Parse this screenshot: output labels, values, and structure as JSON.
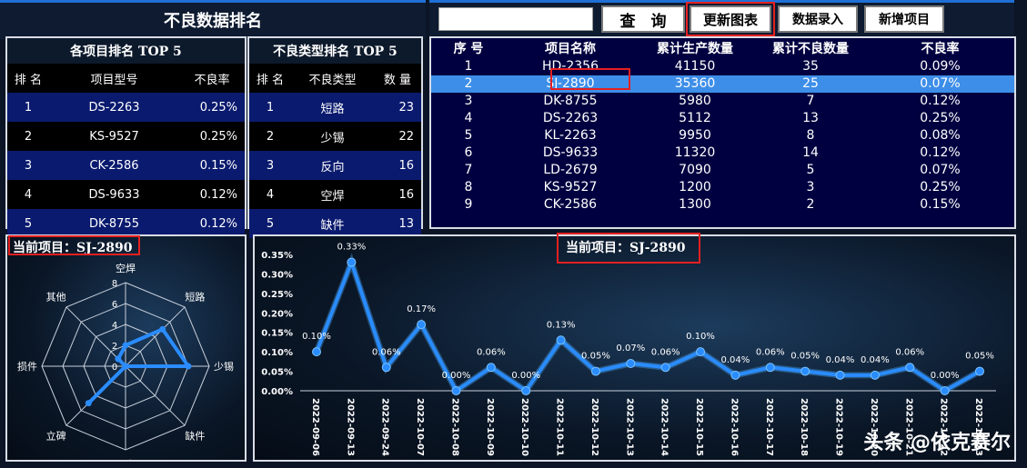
{
  "title": "不良数据排名",
  "toolbar": {
    "search_value": "",
    "query_label": "查　询",
    "refresh_label": "更新图表",
    "entry_label": "数据录入",
    "add_label": "新增项目"
  },
  "top5_projects": {
    "title": "各项目排名 TOP 5",
    "headers": [
      "排 名",
      "项目型号",
      "不良率"
    ],
    "rows": [
      [
        "1",
        "DS-2263",
        "0.25%"
      ],
      [
        "2",
        "KS-9527",
        "0.25%"
      ],
      [
        "3",
        "CK-2586",
        "0.15%"
      ],
      [
        "4",
        "DS-9633",
        "0.12%"
      ],
      [
        "5",
        "DK-8755",
        "0.12%"
      ]
    ]
  },
  "top5_types": {
    "title": "不良类型排名 TOP 5",
    "headers": [
      "排 名",
      "不良类型",
      "数 量"
    ],
    "rows": [
      [
        "1",
        "短路",
        "23"
      ],
      [
        "2",
        "少锡",
        "22"
      ],
      [
        "3",
        "反向",
        "16"
      ],
      [
        "4",
        "空焊",
        "16"
      ],
      [
        "5",
        "缺件",
        "13"
      ]
    ]
  },
  "project_list": {
    "headers": [
      "序 号",
      "项目名称",
      "累计生产数量",
      "累计不良数量",
      "不良率"
    ],
    "selected_index": 1,
    "rows": [
      [
        "1",
        "HD-2356",
        "41150",
        "35",
        "0.09%"
      ],
      [
        "2",
        "SJ-2890",
        "35360",
        "25",
        "0.07%"
      ],
      [
        "3",
        "DK-8755",
        "5980",
        "7",
        "0.12%"
      ],
      [
        "4",
        "DS-2263",
        "5112",
        "13",
        "0.25%"
      ],
      [
        "5",
        "KL-2263",
        "9950",
        "8",
        "0.08%"
      ],
      [
        "6",
        "DS-9633",
        "11320",
        "14",
        "0.12%"
      ],
      [
        "7",
        "LD-2679",
        "7090",
        "5",
        "0.07%"
      ],
      [
        "8",
        "KS-9527",
        "1200",
        "3",
        "0.25%"
      ],
      [
        "9",
        "CK-2586",
        "1300",
        "2",
        "0.15%"
      ]
    ]
  },
  "current_project_label": "当前项目：SJ-2890",
  "radar": {
    "type": "radar",
    "axes": [
      "空焊",
      "短路",
      "少锡",
      "缺件",
      "反向",
      "立碑",
      "损件",
      "其他"
    ],
    "values": [
      2,
      5,
      6,
      0,
      0,
      5,
      0,
      1
    ],
    "ticks": [
      "0",
      "2",
      "4",
      "6",
      "8"
    ],
    "max": 8
  },
  "chart_data": {
    "type": "line",
    "title": "当前项目：SJ-2890",
    "x": [
      "2022-09-06",
      "2022-09-13",
      "2022-09-24",
      "2022-10-07",
      "2022-10-08",
      "2022-10-09",
      "2022-10-10",
      "2022-10-11",
      "2022-10-12",
      "2022-10-13",
      "2022-10-14",
      "2022-10-15",
      "2022-10-16",
      "2022-10-17",
      "2022-10-18",
      "2022-10-19",
      "2022-10-20",
      "2022-10-21",
      "2022-10-22",
      "2022-10-23"
    ],
    "values": [
      0.1,
      0.33,
      0.06,
      0.17,
      0.0,
      0.06,
      0.0,
      0.13,
      0.05,
      0.07,
      0.06,
      0.1,
      0.04,
      0.06,
      0.05,
      0.04,
      0.04,
      0.06,
      0.0,
      0.05
    ],
    "data_labels": [
      "0.10%",
      "0.33%",
      "0.06%",
      "0.17%",
      "0.00%",
      "0.06%",
      "0.00%",
      "0.13%",
      "0.05%",
      "0.07%",
      "0.06%",
      "0.10%",
      "0.04%",
      "0.06%",
      "0.05%",
      "0.04%",
      "0.04%",
      "0.06%",
      "0.00%",
      "0.05%"
    ],
    "y_ticks": [
      "0.00%",
      "0.05%",
      "0.10%",
      "0.15%",
      "0.20%",
      "0.25%",
      "0.30%",
      "0.35%"
    ],
    "ylim": [
      0,
      0.35
    ],
    "color": "#2a8cff"
  },
  "watermark": "头条 @依克赛尔"
}
